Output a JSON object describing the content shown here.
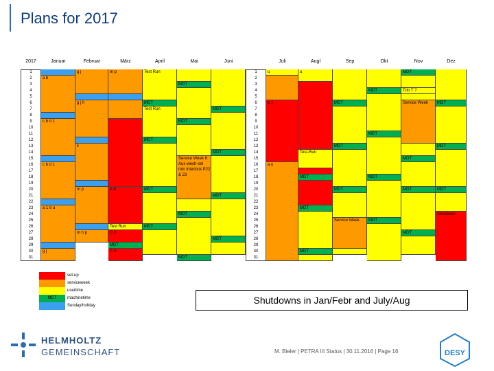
{
  "title": "Plans for 2017",
  "year": "2017",
  "days": [
    1,
    2,
    3,
    4,
    5,
    6,
    7,
    8,
    9,
    10,
    11,
    12,
    13,
    14,
    15,
    16,
    17,
    18,
    19,
    20,
    21,
    22,
    23,
    24,
    25,
    26,
    27,
    28,
    29,
    30,
    31
  ],
  "colors": {
    "setup": "#ff0000",
    "service": "#ff9900",
    "user": "#ffff00",
    "machine": "#00b050",
    "sun": "#3ca0f0"
  },
  "legend": [
    {
      "key": "setup",
      "label": "set-up"
    },
    {
      "key": "service",
      "label": "serviceweek"
    },
    {
      "key": "user",
      "label": "usertime"
    },
    {
      "key": "machine",
      "label": "machinetime",
      "swatch": "MDT"
    },
    {
      "key": "sun",
      "label": "Sunday/holiday"
    }
  ],
  "months": [
    {
      "name": "Januar",
      "runs": [
        [
          1,
          1,
          "sun"
        ],
        [
          2,
          7,
          "service",
          "a b"
        ],
        [
          8,
          8,
          "sun"
        ],
        [
          9,
          14,
          "service",
          "c b d 1"
        ],
        [
          15,
          15,
          "sun"
        ],
        [
          16,
          21,
          "service",
          "c b d 1"
        ],
        [
          22,
          22,
          "sun"
        ],
        [
          23,
          28,
          "service",
          "a 1 b a"
        ],
        [
          29,
          29,
          "sun"
        ],
        [
          30,
          31,
          "service",
          "g j"
        ]
      ]
    },
    {
      "name": "Februar",
      "runs": [
        [
          1,
          4,
          "service",
          "g j"
        ],
        [
          5,
          5,
          "sun"
        ],
        [
          6,
          11,
          "service",
          "g j h"
        ],
        [
          12,
          12,
          "sun"
        ],
        [
          13,
          18,
          "service",
          "k"
        ],
        [
          19,
          19,
          "sun"
        ],
        [
          20,
          25,
          "service",
          "m p"
        ],
        [
          26,
          26,
          "sun"
        ],
        [
          27,
          28,
          "service",
          "m h p"
        ]
      ]
    },
    {
      "name": "März",
      "runs": [
        [
          1,
          4,
          "service",
          "m p"
        ],
        [
          5,
          5,
          "sun"
        ],
        [
          6,
          8,
          "service"
        ],
        [
          9,
          19,
          "setup"
        ],
        [
          20,
          25,
          "setup",
          "A B"
        ],
        [
          26,
          26,
          "user",
          "Test Run"
        ],
        [
          27,
          28,
          "setup",
          "C B"
        ],
        [
          29,
          29,
          "machine",
          "MDT"
        ],
        [
          30,
          31,
          "setup",
          "C B"
        ]
      ]
    },
    {
      "name": "April",
      "runs": [
        [
          1,
          5,
          "user",
          "Test Run"
        ],
        [
          6,
          6,
          "machine",
          "MDT"
        ],
        [
          7,
          11,
          "user",
          "Test Run"
        ],
        [
          12,
          12,
          "machine",
          "MDT"
        ],
        [
          13,
          19,
          "user"
        ],
        [
          20,
          20,
          "machine",
          "MDT"
        ],
        [
          21,
          25,
          "user"
        ],
        [
          26,
          26,
          "machine",
          "MDT"
        ],
        [
          27,
          30,
          "user"
        ]
      ]
    },
    {
      "name": "Mai",
      "runs": [
        [
          1,
          2,
          "user"
        ],
        [
          3,
          3,
          "machine",
          "MDT"
        ],
        [
          4,
          8,
          "user"
        ],
        [
          9,
          9,
          "machine",
          "MDT"
        ],
        [
          10,
          14,
          "user"
        ],
        [
          15,
          21,
          "service",
          "Service Week 6 Aus-wech-sel min Interlock P22 & 23"
        ],
        [
          22,
          23,
          "user"
        ],
        [
          24,
          24,
          "machine",
          "MDT"
        ],
        [
          25,
          30,
          "user"
        ],
        [
          31,
          31,
          "machine",
          "MDT"
        ]
      ]
    },
    {
      "name": "Juni",
      "runs": [
        [
          1,
          6,
          "user"
        ],
        [
          7,
          7,
          "machine",
          "MDT"
        ],
        [
          8,
          13,
          "user"
        ],
        [
          14,
          14,
          "machine",
          "MDT"
        ],
        [
          15,
          20,
          "user"
        ],
        [
          21,
          21,
          "machine",
          "MDT"
        ],
        [
          22,
          27,
          "user"
        ],
        [
          28,
          28,
          "machine",
          "MDT"
        ],
        [
          29,
          30,
          "user"
        ]
      ]
    },
    {
      "name": "Juli",
      "runs": [
        [
          1,
          1,
          "user",
          "u"
        ],
        [
          2,
          5,
          "service"
        ],
        [
          6,
          15,
          "setup",
          "a 1"
        ],
        [
          16,
          31,
          "service",
          "a u"
        ]
      ]
    },
    {
      "name": "Augl",
      "runs": [
        [
          1,
          2,
          "user",
          "u"
        ],
        [
          3,
          13,
          "setup"
        ],
        [
          14,
          16,
          "user",
          "Test-Run"
        ],
        [
          17,
          17,
          "setup"
        ],
        [
          18,
          18,
          "machine",
          "MDT"
        ],
        [
          19,
          22,
          "setup"
        ],
        [
          23,
          23,
          "machine",
          "MDT"
        ],
        [
          24,
          29,
          "user"
        ],
        [
          30,
          30,
          "machine",
          "MDT"
        ],
        [
          31,
          31,
          "user"
        ]
      ]
    },
    {
      "name": "Sep",
      "runs": [
        [
          1,
          5,
          "user"
        ],
        [
          6,
          6,
          "machine",
          "MDT"
        ],
        [
          7,
          12,
          "user"
        ],
        [
          13,
          13,
          "machine",
          "MDT"
        ],
        [
          14,
          19,
          "user"
        ],
        [
          20,
          20,
          "machine",
          "MDT"
        ],
        [
          21,
          24,
          "user"
        ],
        [
          25,
          29,
          "service",
          "Service Week"
        ],
        [
          30,
          30,
          "user"
        ]
      ]
    },
    {
      "name": "Okt",
      "runs": [
        [
          1,
          3,
          "user"
        ],
        [
          4,
          4,
          "machine",
          "MDT"
        ],
        [
          5,
          10,
          "user"
        ],
        [
          11,
          11,
          "machine",
          "MDT"
        ],
        [
          12,
          17,
          "user"
        ],
        [
          18,
          18,
          "machine",
          "MDT"
        ],
        [
          19,
          24,
          "user"
        ],
        [
          25,
          25,
          "machine",
          "MDT"
        ],
        [
          26,
          31,
          "user"
        ]
      ]
    },
    {
      "name": "Nov",
      "runs": [
        [
          1,
          1,
          "machine",
          "MDT"
        ],
        [
          2,
          3,
          "user"
        ],
        [
          4,
          4,
          "user",
          "Tdo T ?"
        ],
        [
          5,
          5,
          "user"
        ],
        [
          6,
          12,
          "service",
          "Service Week"
        ],
        [
          13,
          14,
          "user"
        ],
        [
          15,
          15,
          "machine",
          "MDT"
        ],
        [
          16,
          19,
          "user"
        ],
        [
          20,
          20,
          "machine",
          "MDT"
        ],
        [
          21,
          26,
          "user"
        ],
        [
          27,
          27,
          "machine",
          "MDT"
        ],
        [
          28,
          30,
          "user"
        ]
      ]
    },
    {
      "name": "Dez",
      "runs": [
        [
          1,
          5,
          "user"
        ],
        [
          6,
          6,
          "machine",
          "MDT"
        ],
        [
          7,
          12,
          "user"
        ],
        [
          13,
          13,
          "machine",
          "MDT"
        ],
        [
          14,
          19,
          "user"
        ],
        [
          20,
          20,
          "machine",
          "MDT"
        ],
        [
          21,
          23,
          "user"
        ],
        [
          24,
          31,
          "setup",
          "Shutdown"
        ]
      ]
    }
  ],
  "note": "Shutdowns in Jan/Febr and July/Aug",
  "logo": {
    "line1": "HELMHOLTZ",
    "line2": "GEMEINSCHAFT"
  },
  "footer": "M. Bieler  |  PETRA III Status  |  30.11.2016  |  Page 16",
  "desy": "DESY"
}
